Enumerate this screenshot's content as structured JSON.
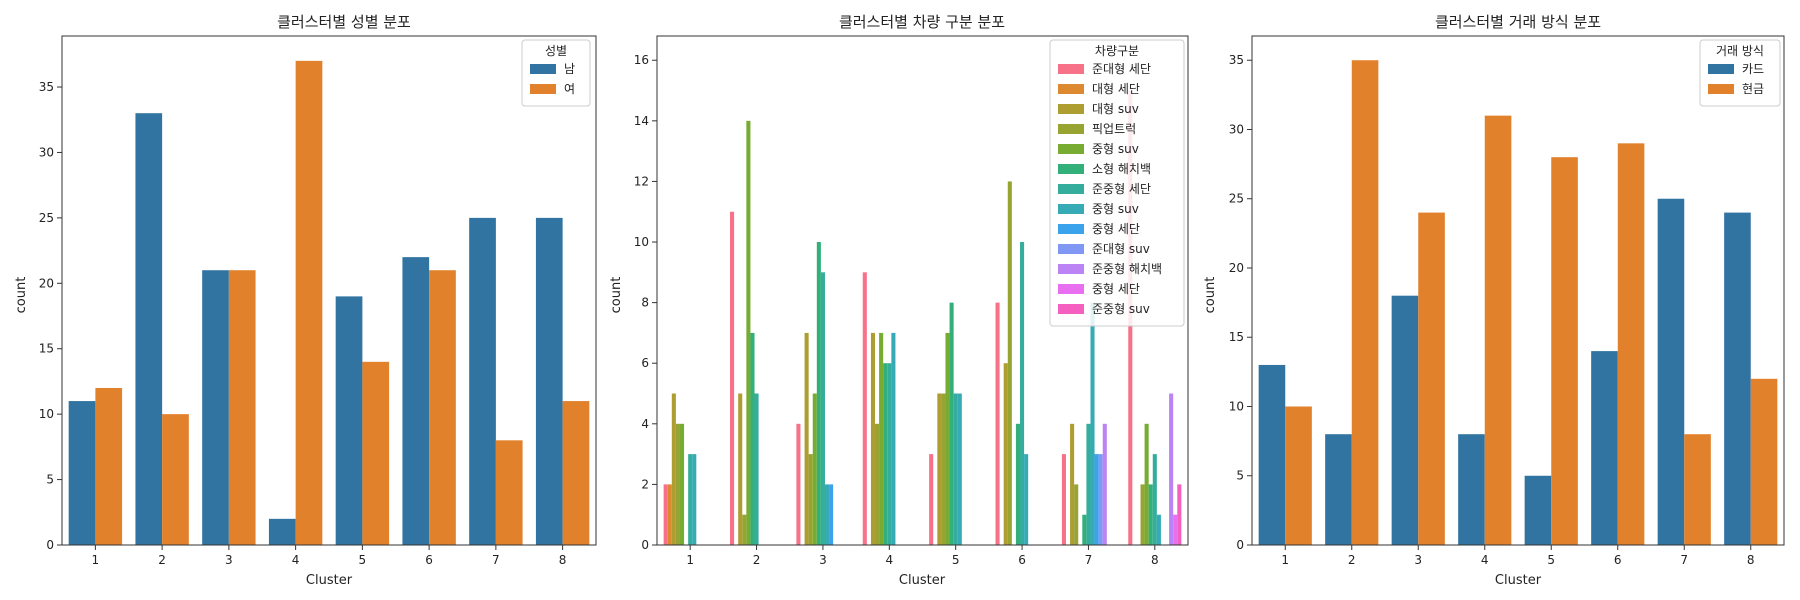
{
  "charts": [
    {
      "type": "bar",
      "title": "클러스터별 성별 분포",
      "xlabel": "Cluster",
      "ylabel": "count",
      "categories": [
        "1",
        "2",
        "3",
        "4",
        "5",
        "6",
        "7",
        "8"
      ],
      "ylim": [
        0,
        38.9
      ],
      "yticks": [
        0,
        5,
        10,
        15,
        20,
        25,
        30,
        35
      ],
      "legend_title": "성별",
      "legend_position": "top-right",
      "series": [
        {
          "name": "남",
          "color": "#3274a1",
          "values": [
            11,
            33,
            21,
            2,
            19,
            22,
            25,
            25
          ]
        },
        {
          "name": "여",
          "color": "#e1812c",
          "values": [
            12,
            10,
            21,
            37,
            14,
            21,
            8,
            11
          ]
        }
      ]
    },
    {
      "type": "bar",
      "title": "클러스터별 차량 구분 분포",
      "xlabel": "Cluster",
      "ylabel": "count",
      "categories": [
        "1",
        "2",
        "3",
        "4",
        "5",
        "6",
        "7",
        "8"
      ],
      "ylim": [
        0,
        16.8
      ],
      "yticks": [
        0,
        2,
        4,
        6,
        8,
        10,
        12,
        14,
        16
      ],
      "legend_title": "차량구분",
      "legend_position": "top-right",
      "series": [
        {
          "name": "준대형 세단",
          "color": "#f77189",
          "values": [
            2,
            11,
            4,
            9,
            3,
            8,
            3,
            15
          ]
        },
        {
          "name": "대형 세단",
          "color": "#dc8932",
          "values": [
            2,
            0,
            0,
            0,
            0,
            0,
            0,
            0
          ]
        },
        {
          "name": "대형 suv",
          "color": "#ae9d31",
          "values": [
            5,
            5,
            7,
            7,
            5,
            6,
            4,
            0
          ]
        },
        {
          "name": "픽업트럭",
          "color": "#97a431",
          "values": [
            4,
            1,
            3,
            4,
            5,
            12,
            2,
            2
          ]
        },
        {
          "name": "중형 suv",
          "color": "#77ab31",
          "values": [
            4,
            14,
            5,
            7,
            7,
            0,
            0,
            4
          ]
        },
        {
          "name": "소형 해치백",
          "color": "#33b07a",
          "values": [
            0,
            7,
            10,
            6,
            8,
            4,
            1,
            2
          ]
        },
        {
          "name": "준중형 세단",
          "color": "#35ad9c",
          "values": [
            3,
            5,
            9,
            6,
            5,
            10,
            4,
            3
          ]
        },
        {
          "name": " 중형 suv",
          "color": "#37abb5",
          "values": [
            3,
            0,
            2,
            7,
            5,
            3,
            8,
            1
          ]
        },
        {
          "name": "중형 세단",
          "color": "#3ba3ec",
          "values": [
            0,
            0,
            2,
            0,
            0,
            0,
            3,
            0
          ]
        },
        {
          "name": "준대형 suv",
          "color": "#8197f4",
          "values": [
            0,
            0,
            0,
            0,
            0,
            0,
            3,
            0
          ]
        },
        {
          "name": "준중형 해치백",
          "color": "#bb83f4",
          "values": [
            0,
            0,
            0,
            0,
            0,
            0,
            4,
            5
          ]
        },
        {
          "name": " 중형 세단",
          "color": "#e76ff0",
          "values": [
            0,
            0,
            0,
            0,
            0,
            0,
            0,
            1
          ]
        },
        {
          "name": "준중형 suv",
          "color": "#f45fc0",
          "values": [
            0,
            0,
            0,
            0,
            0,
            0,
            0,
            2
          ]
        }
      ]
    },
    {
      "type": "bar",
      "title": "클러스터별 거래 방식 분포",
      "xlabel": "Cluster",
      "ylabel": "count",
      "categories": [
        "1",
        "2",
        "3",
        "4",
        "5",
        "6",
        "7",
        "8"
      ],
      "ylim": [
        0,
        36.75
      ],
      "yticks": [
        0,
        5,
        10,
        15,
        20,
        25,
        30,
        35
      ],
      "legend_title": "거래 방식",
      "legend_position": "top-right",
      "series": [
        {
          "name": "카드",
          "color": "#3274a1",
          "values": [
            13,
            8,
            18,
            8,
            5,
            14,
            25,
            24
          ]
        },
        {
          "name": "현금",
          "color": "#e1812c",
          "values": [
            10,
            35,
            24,
            31,
            28,
            29,
            8,
            12
          ]
        }
      ]
    }
  ]
}
